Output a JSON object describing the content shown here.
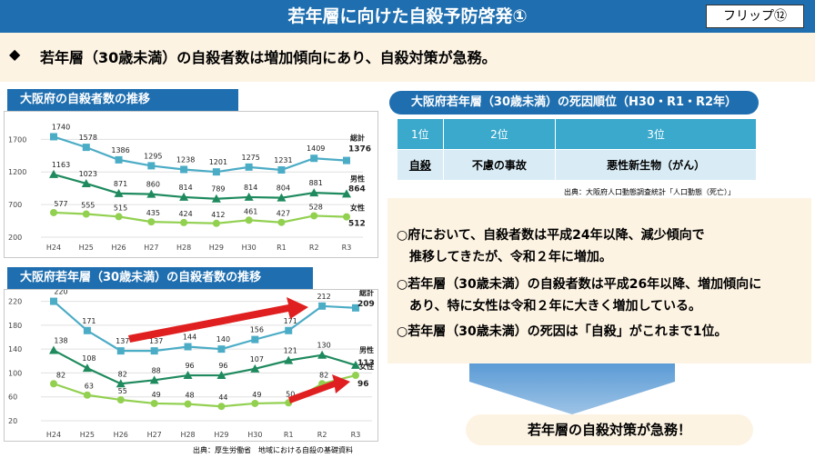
{
  "header": {
    "title": "若年層に向けた自殺予防啓発①",
    "flip_label": "フリップ⑫"
  },
  "lead": {
    "bullet": "◆",
    "text": "若年層（30歳未満）の自殺者数は増加傾向にあり、自殺対策が急務。"
  },
  "colors": {
    "total": "#4bacc6",
    "male": "#1e8a5e",
    "female": "#92d050",
    "header": "#1f6fb0",
    "accent_arrow": "#e02020"
  },
  "chart_data": [
    {
      "type": "line",
      "title": "大阪府の自殺者数の推移",
      "categories": [
        "H24",
        "H25",
        "H26",
        "H27",
        "H28",
        "H29",
        "H30",
        "R1",
        "R2",
        "R3"
      ],
      "yticks": [
        "1700",
        "1200",
        "700",
        "200"
      ],
      "ylim": [
        200,
        1900
      ],
      "series": [
        {
          "name": "総計",
          "values": [
            1740,
            1578,
            1386,
            1295,
            1238,
            1201,
            1275,
            1231,
            1409,
            1376
          ]
        },
        {
          "name": "男性",
          "values": [
            1163,
            1023,
            871,
            860,
            814,
            789,
            814,
            804,
            881,
            864
          ]
        },
        {
          "name": "女性",
          "values": [
            577,
            555,
            515,
            435,
            424,
            412,
            461,
            427,
            528,
            512
          ]
        }
      ]
    },
    {
      "type": "line",
      "title": "大阪府若年層（30歳未満）の自殺者数の推移",
      "categories": [
        "H24",
        "H25",
        "H26",
        "H27",
        "H28",
        "H29",
        "H30",
        "R1",
        "R2",
        "R3"
      ],
      "yticks": [
        "220",
        "180",
        "140",
        "100",
        "60",
        "20"
      ],
      "ylim": [
        20,
        230
      ],
      "series": [
        {
          "name": "総計",
          "values": [
            220,
            171,
            137,
            137,
            144,
            140,
            156,
            171,
            212,
            209
          ]
        },
        {
          "name": "男性",
          "values": [
            138,
            108,
            82,
            88,
            96,
            96,
            107,
            121,
            130,
            113
          ]
        },
        {
          "name": "女性",
          "values": [
            82,
            63,
            55,
            49,
            48,
            44,
            49,
            50,
            82,
            96
          ]
        }
      ]
    }
  ],
  "rank_table": {
    "title": "大阪府若年層（30歳未満）の死因順位（H30・R1・R2年）",
    "headers": [
      "1位",
      "2位",
      "3位"
    ],
    "cells": [
      "自殺",
      "不慮の事故",
      "悪性新生物（がん）"
    ],
    "source": "出典：大阪府人口動態調査統計「人口動態（死亡）」"
  },
  "notes": [
    "○府において、自殺者数は平成24年以降、減少傾向で",
    "推移してきたが、令和２年に増加。",
    "○若年層（30歳未満）の自殺者数は平成26年以降、増加傾向に",
    "あり、特に女性は令和２年に大きく増加している。",
    "○若年層（30歳未満）の死因は「自殺」がこれまで1位。"
  ],
  "conclusion": "若年層の自殺対策が急務！",
  "source2": "出典：厚生労働省　地域における自殺の基礎資料"
}
